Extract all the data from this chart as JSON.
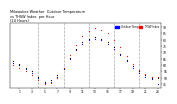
{
  "title": "Milwaukee Weather  Outdoor Temperature\nvs THSW Index  per Hour\n(24 Hours)",
  "background_color": "#ffffff",
  "plot_bg_color": "#ffffff",
  "grid_color": "#aaaaaa",
  "hours": [
    0,
    1,
    2,
    3,
    4,
    5,
    6,
    7,
    8,
    9,
    10,
    11,
    12,
    13,
    14,
    15,
    16,
    17,
    18,
    19,
    20,
    21,
    22,
    23
  ],
  "temp_outdoor_blue": [
    62,
    60,
    57,
    54,
    50,
    46,
    47,
    51,
    57,
    65,
    72,
    77,
    80,
    81,
    80,
    77,
    73,
    68,
    63,
    58,
    54,
    51,
    49,
    45
  ],
  "thsw_red": [
    60,
    58,
    55,
    52,
    48,
    45,
    46,
    50,
    58,
    68,
    76,
    83,
    87,
    89,
    88,
    85,
    80,
    74,
    67,
    61,
    56,
    53,
    51,
    51
  ],
  "temp_black": [
    63,
    61,
    58,
    55,
    51,
    47,
    48,
    52,
    58,
    66,
    73,
    78,
    81,
    82,
    81,
    78,
    74,
    69,
    64,
    59,
    55,
    52,
    50,
    50
  ],
  "outdoor_color": "#0000ff",
  "thsw_color": "#ff0000",
  "black_color": "#000000",
  "dot_size": 3,
  "ylim": [
    42,
    93
  ],
  "xlim": [
    -0.5,
    23.5
  ],
  "ytick_values": [
    45,
    50,
    55,
    60,
    65,
    70,
    75,
    80,
    85,
    90
  ],
  "ytick_labels": [
    "45",
    "50",
    "55",
    "60",
    "65",
    "70",
    "75",
    "80",
    "85",
    "90"
  ],
  "xtick_positions": [
    1,
    3,
    5,
    7,
    9,
    11,
    13,
    15,
    17,
    19,
    21,
    23
  ],
  "xtick_labels": [
    "1",
    "3",
    "5",
    "7",
    "9",
    "11",
    "13",
    "15",
    "17",
    "19",
    "21",
    "23"
  ],
  "vline_positions": [
    4,
    8,
    12,
    16,
    20
  ],
  "legend_labels": [
    "Outdoor Temp",
    "THSW Index"
  ],
  "legend_colors": [
    "#0000ff",
    "#ff0000"
  ]
}
